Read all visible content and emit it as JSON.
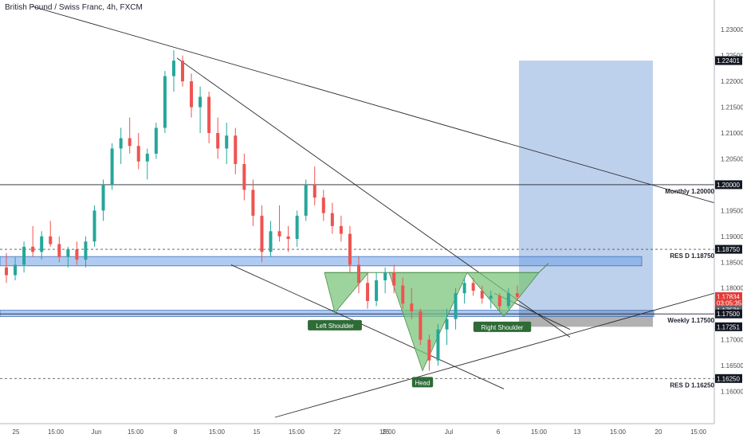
{
  "chart_data": {
    "type": "candlestick",
    "title": "British Pound / Swiss Franc, 4h, FXCM",
    "ylim": [
      1.155,
      1.2345
    ],
    "y_ticks": [
      "1.23000",
      "1.22500",
      "1.22000",
      "1.21500",
      "1.21000",
      "1.20500",
      "1.20000",
      "1.19500",
      "1.19000",
      "1.18750",
      "1.18500",
      "1.18000",
      "1.17834",
      "03:05:35",
      "1.17576",
      "1.17500",
      "1.17251",
      "1.17000",
      "1.16500",
      "1.16250",
      "1.16000"
    ],
    "x_ticks": [
      "25",
      "15:00",
      "Jun",
      "15:00",
      "8",
      "15:00",
      "15",
      "15:00",
      "22",
      "25",
      "15:00",
      "Jul",
      "6",
      "15:00",
      "13",
      "15:00",
      "20",
      "15:00"
    ],
    "price_labels": [
      {
        "text": "1.22401",
        "value": 1.22401,
        "color": "#131722",
        "text_color": "#ffffff"
      },
      {
        "text": "1.20000",
        "value": 1.2,
        "color": "#131722",
        "text_color": "#ffffff"
      },
      {
        "text": "1.18750",
        "value": 1.1875,
        "color": "#131722",
        "text_color": "#ffffff"
      },
      {
        "text": "1.17834",
        "value": 1.17834,
        "color": "#e53935",
        "text_color": "#ffffff"
      },
      {
        "text": "03:05:35",
        "value": 1.1771,
        "color": "#e53935",
        "text_color": "#ffffff"
      },
      {
        "text": "1.17576",
        "value": 1.17576,
        "color": "#5d606b",
        "text_color": "#ffffff"
      },
      {
        "text": "1.17500",
        "value": 1.175,
        "color": "#131722",
        "text_color": "#ffffff"
      },
      {
        "text": "1.17251",
        "value": 1.17251,
        "color": "#131722",
        "text_color": "#ffffff"
      },
      {
        "text": "1.16250",
        "value": 1.1625,
        "color": "#131722",
        "text_color": "#ffffff"
      }
    ],
    "levels": [
      {
        "label": "Monthly 1.20000",
        "value": 1.2,
        "style": "solid"
      },
      {
        "label": "RES D 1.18750",
        "value": 1.1875,
        "style": "dashed"
      },
      {
        "label": "Weekly 1.17500",
        "value": 1.175,
        "style": "solid"
      },
      {
        "label": "RES D 1.16250",
        "value": 1.1625,
        "style": "dashed"
      }
    ],
    "pattern_labels": [
      "Left Shoulder",
      "Head",
      "Right Shoulder"
    ],
    "colors": {
      "up": "#26a69a",
      "down": "#ef5350",
      "zone": "#6fa0e6",
      "target": "#a8c1e6",
      "stop": "#9e9e9e",
      "pattern": "#7cc47c"
    },
    "series": [
      {
        "x": 1,
        "open": 1.184,
        "high": 1.1868,
        "low": 1.181,
        "close": 1.1825
      },
      {
        "x": 2,
        "open": 1.1825,
        "high": 1.186,
        "low": 1.1815,
        "close": 1.1845
      },
      {
        "x": 3,
        "open": 1.1845,
        "high": 1.189,
        "low": 1.183,
        "close": 1.188
      },
      {
        "x": 4,
        "open": 1.188,
        "high": 1.192,
        "low": 1.186,
        "close": 1.187
      },
      {
        "x": 5,
        "open": 1.187,
        "high": 1.191,
        "low": 1.1855,
        "close": 1.19
      },
      {
        "x": 6,
        "open": 1.19,
        "high": 1.193,
        "low": 1.188,
        "close": 1.1885
      },
      {
        "x": 7,
        "open": 1.1885,
        "high": 1.19,
        "low": 1.185,
        "close": 1.186
      },
      {
        "x": 8,
        "open": 1.186,
        "high": 1.188,
        "low": 1.184,
        "close": 1.1875
      },
      {
        "x": 9,
        "open": 1.1875,
        "high": 1.189,
        "low": 1.1845,
        "close": 1.1855
      },
      {
        "x": 10,
        "open": 1.1855,
        "high": 1.19,
        "low": 1.184,
        "close": 1.189
      },
      {
        "x": 11,
        "open": 1.189,
        "high": 1.196,
        "low": 1.188,
        "close": 1.195
      },
      {
        "x": 12,
        "open": 1.195,
        "high": 1.201,
        "low": 1.193,
        "close": 1.2
      },
      {
        "x": 13,
        "open": 1.2,
        "high": 1.208,
        "low": 1.199,
        "close": 1.207
      },
      {
        "x": 14,
        "open": 1.207,
        "high": 1.211,
        "low": 1.204,
        "close": 1.209
      },
      {
        "x": 15,
        "open": 1.209,
        "high": 1.213,
        "low": 1.206,
        "close": 1.2075
      },
      {
        "x": 16,
        "open": 1.2075,
        "high": 1.21,
        "low": 1.203,
        "close": 1.2045
      },
      {
        "x": 17,
        "open": 1.2045,
        "high": 1.207,
        "low": 1.201,
        "close": 1.206
      },
      {
        "x": 18,
        "open": 1.206,
        "high": 1.212,
        "low": 1.205,
        "close": 1.211
      },
      {
        "x": 19,
        "open": 1.211,
        "high": 1.222,
        "low": 1.21,
        "close": 1.221
      },
      {
        "x": 20,
        "open": 1.221,
        "high": 1.226,
        "low": 1.218,
        "close": 1.224
      },
      {
        "x": 21,
        "open": 1.224,
        "high": 1.225,
        "low": 1.219,
        "close": 1.22
      },
      {
        "x": 22,
        "open": 1.22,
        "high": 1.2215,
        "low": 1.213,
        "close": 1.215
      },
      {
        "x": 23,
        "open": 1.215,
        "high": 1.219,
        "low": 1.21,
        "close": 1.217
      },
      {
        "x": 24,
        "open": 1.217,
        "high": 1.218,
        "low": 1.208,
        "close": 1.21
      },
      {
        "x": 25,
        "open": 1.21,
        "high": 1.213,
        "low": 1.205,
        "close": 1.207
      },
      {
        "x": 26,
        "open": 1.207,
        "high": 1.212,
        "low": 1.204,
        "close": 1.2095
      },
      {
        "x": 27,
        "open": 1.2095,
        "high": 1.211,
        "low": 1.202,
        "close": 1.204
      },
      {
        "x": 28,
        "open": 1.204,
        "high": 1.206,
        "low": 1.197,
        "close": 1.199
      },
      {
        "x": 29,
        "open": 1.199,
        "high": 1.201,
        "low": 1.192,
        "close": 1.194
      },
      {
        "x": 30,
        "open": 1.194,
        "high": 1.196,
        "low": 1.185,
        "close": 1.187
      },
      {
        "x": 31,
        "open": 1.187,
        "high": 1.193,
        "low": 1.186,
        "close": 1.191
      },
      {
        "x": 32,
        "open": 1.191,
        "high": 1.196,
        "low": 1.189,
        "close": 1.19
      },
      {
        "x": 33,
        "open": 1.19,
        "high": 1.192,
        "low": 1.187,
        "close": 1.1895
      },
      {
        "x": 34,
        "open": 1.1895,
        "high": 1.195,
        "low": 1.188,
        "close": 1.194
      },
      {
        "x": 35,
        "open": 1.194,
        "high": 1.201,
        "low": 1.193,
        "close": 1.2
      },
      {
        "x": 36,
        "open": 1.2,
        "high": 1.2035,
        "low": 1.196,
        "close": 1.1975
      },
      {
        "x": 37,
        "open": 1.1975,
        "high": 1.199,
        "low": 1.193,
        "close": 1.1945
      },
      {
        "x": 38,
        "open": 1.1945,
        "high": 1.1965,
        "low": 1.1905,
        "close": 1.192
      },
      {
        "x": 39,
        "open": 1.192,
        "high": 1.194,
        "low": 1.189,
        "close": 1.1905
      },
      {
        "x": 40,
        "open": 1.1905,
        "high": 1.192,
        "low": 1.183,
        "close": 1.1845
      },
      {
        "x": 41,
        "open": 1.1845,
        "high": 1.186,
        "low": 1.179,
        "close": 1.181
      },
      {
        "x": 42,
        "open": 1.181,
        "high": 1.183,
        "low": 1.176,
        "close": 1.1775
      },
      {
        "x": 43,
        "open": 1.1775,
        "high": 1.183,
        "low": 1.1765,
        "close": 1.1815
      },
      {
        "x": 44,
        "open": 1.1815,
        "high": 1.184,
        "low": 1.179,
        "close": 1.183
      },
      {
        "x": 45,
        "open": 1.183,
        "high": 1.1845,
        "low": 1.179,
        "close": 1.1805
      },
      {
        "x": 46,
        "open": 1.1805,
        "high": 1.182,
        "low": 1.176,
        "close": 1.177
      },
      {
        "x": 47,
        "open": 1.177,
        "high": 1.18,
        "low": 1.174,
        "close": 1.1755
      },
      {
        "x": 48,
        "open": 1.1755,
        "high": 1.176,
        "low": 1.169,
        "close": 1.17
      },
      {
        "x": 49,
        "open": 1.17,
        "high": 1.171,
        "low": 1.164,
        "close": 1.166
      },
      {
        "x": 50,
        "open": 1.166,
        "high": 1.173,
        "low": 1.165,
        "close": 1.172
      },
      {
        "x": 51,
        "open": 1.172,
        "high": 1.176,
        "low": 1.169,
        "close": 1.174
      },
      {
        "x": 52,
        "open": 1.174,
        "high": 1.18,
        "low": 1.172,
        "close": 1.179
      },
      {
        "x": 53,
        "open": 1.179,
        "high": 1.182,
        "low": 1.177,
        "close": 1.181
      },
      {
        "x": 54,
        "open": 1.181,
        "high": 1.182,
        "low": 1.1785,
        "close": 1.1795
      },
      {
        "x": 55,
        "open": 1.1795,
        "high": 1.1805,
        "low": 1.177,
        "close": 1.178
      },
      {
        "x": 56,
        "open": 1.178,
        "high": 1.1795,
        "low": 1.176,
        "close": 1.1785
      },
      {
        "x": 57,
        "open": 1.1785,
        "high": 1.179,
        "low": 1.1755,
        "close": 1.1765
      },
      {
        "x": 58,
        "open": 1.1765,
        "high": 1.18,
        "low": 1.176,
        "close": 1.179
      },
      {
        "x": 59,
        "open": 1.179,
        "high": 1.1805,
        "low": 1.1775,
        "close": 1.1783
      }
    ]
  }
}
